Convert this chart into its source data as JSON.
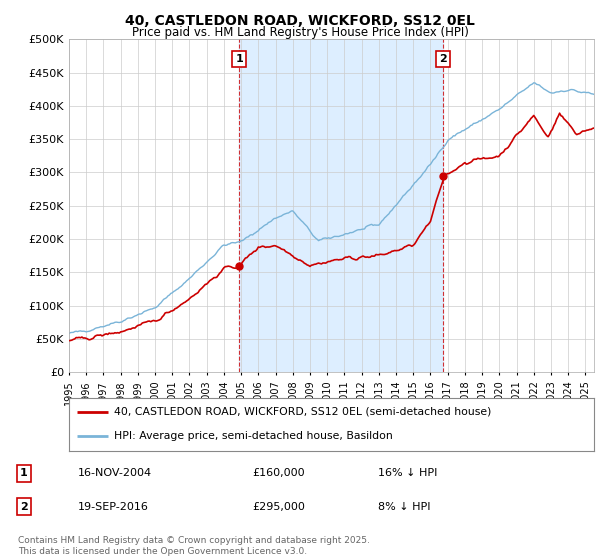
{
  "title": "40, CASTLEDON ROAD, WICKFORD, SS12 0EL",
  "subtitle": "Price paid vs. HM Land Registry's House Price Index (HPI)",
  "ylim": [
    0,
    500000
  ],
  "yticks": [
    0,
    50000,
    100000,
    150000,
    200000,
    250000,
    300000,
    350000,
    400000,
    450000,
    500000
  ],
  "ytick_labels": [
    "£0",
    "£50K",
    "£100K",
    "£150K",
    "£200K",
    "£250K",
    "£300K",
    "£350K",
    "£400K",
    "£450K",
    "£500K"
  ],
  "sale1_date_num": 2004.88,
  "sale1_price": 160000,
  "sale2_date_num": 2016.72,
  "sale2_price": 295000,
  "hpi_color": "#7ab4d8",
  "price_color": "#cc0000",
  "vline_color": "#cc0000",
  "legend1_label": "40, CASTLEDON ROAD, WICKFORD, SS12 0EL (semi-detached house)",
  "legend2_label": "HPI: Average price, semi-detached house, Basildon",
  "annotation1_date": "16-NOV-2004",
  "annotation1_price": "£160,000",
  "annotation1_hpi": "16% ↓ HPI",
  "annotation2_date": "19-SEP-2016",
  "annotation2_price": "£295,000",
  "annotation2_hpi": "8% ↓ HPI",
  "footer": "Contains HM Land Registry data © Crown copyright and database right 2025.\nThis data is licensed under the Open Government Licence v3.0.",
  "background_color": "#ffffff",
  "grid_color": "#cccccc",
  "span_color": "#ddeeff"
}
